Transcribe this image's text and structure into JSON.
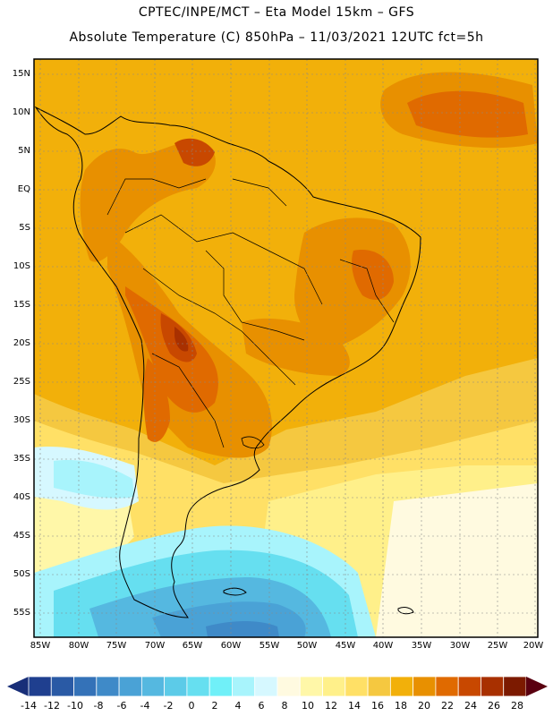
{
  "header": {
    "line1": "CPTEC/INPE/MCT –  Eta Model 15km – GFS",
    "line2": "Absolute Temperature (C) 850hPa – 11/03/2021 12UTC fct=5h"
  },
  "map": {
    "lat_labels": [
      "15N",
      "10N",
      "5N",
      "EQ",
      "5S",
      "10S",
      "15S",
      "20S",
      "25S",
      "30S",
      "35S",
      "40S",
      "45S",
      "50S",
      "55S"
    ],
    "lon_labels": [
      "85W",
      "80W",
      "75W",
      "70W",
      "65W",
      "60W",
      "55W",
      "50W",
      "45W",
      "40W",
      "35W",
      "30W",
      "25W",
      "20W"
    ]
  },
  "colorbar": {
    "labels": [
      "-14",
      "-12",
      "-10",
      "-8",
      "-6",
      "-4",
      "-2",
      "0",
      "2",
      "4",
      "6",
      "8",
      "10",
      "12",
      "14",
      "16",
      "18",
      "20",
      "22",
      "24",
      "26",
      "28"
    ],
    "colors": [
      "#1f3f8f",
      "#2a5aa5",
      "#3472b8",
      "#3f8ac8",
      "#4aa2d6",
      "#55b8e0",
      "#5ccbe8",
      "#66dff0",
      "#70f0f8",
      "#a8f4fc",
      "#d6f8ff",
      "#fffae0",
      "#fff7a8",
      "#fff08a",
      "#ffe066",
      "#f5c840",
      "#f2b00a",
      "#e89000",
      "#e06a00",
      "#c84800",
      "#a83000",
      "#7c1a00"
    ],
    "left_arrow_color": "#182e78",
    "right_arrow_color": "#5a0010"
  }
}
